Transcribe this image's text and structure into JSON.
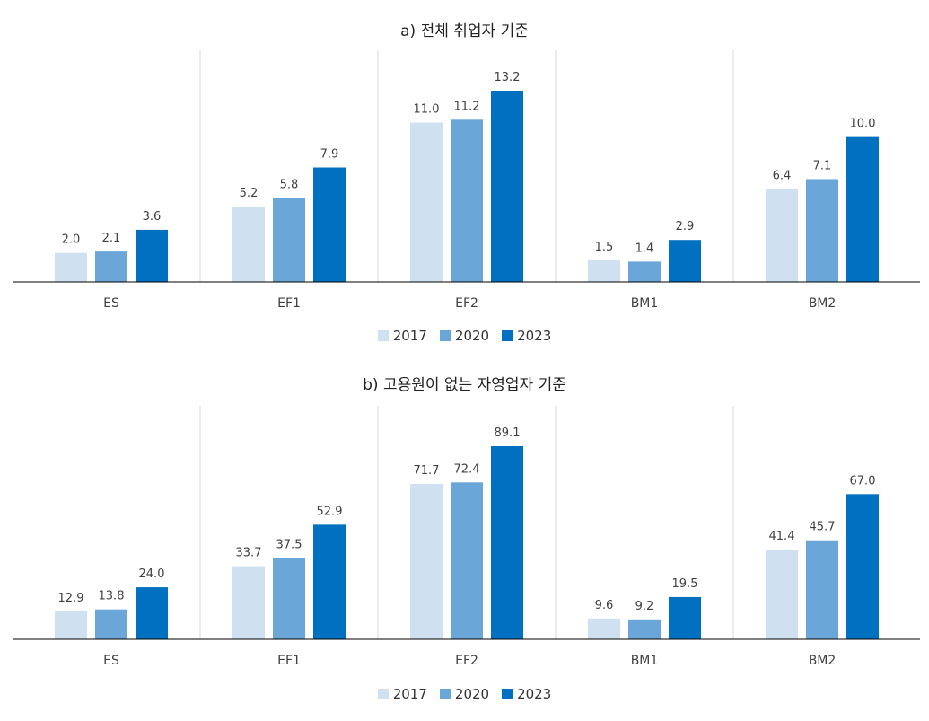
{
  "chart_data": [
    {
      "type": "bar",
      "title": "a) 전체 취업자 기준",
      "categories": [
        "ES",
        "EF1",
        "EF2",
        "BM1",
        "BM2"
      ],
      "series": [
        {
          "name": "2017",
          "values": [
            2.0,
            5.2,
            11.0,
            1.5,
            6.4
          ]
        },
        {
          "name": "2020",
          "values": [
            2.1,
            5.8,
            11.2,
            1.4,
            7.1
          ]
        },
        {
          "name": "2023",
          "values": [
            3.6,
            7.9,
            13.2,
            2.9,
            10.0
          ]
        }
      ],
      "ylim": [
        0,
        13.2
      ],
      "grid": false,
      "legend_position": "bottom",
      "data_labels": true
    },
    {
      "type": "bar",
      "title": "b) 고용원이 없는 자영업자 기준",
      "categories": [
        "ES",
        "EF1",
        "EF2",
        "BM1",
        "BM2"
      ],
      "series": [
        {
          "name": "2017",
          "values": [
            12.9,
            33.7,
            71.7,
            9.6,
            41.4
          ]
        },
        {
          "name": "2020",
          "values": [
            13.8,
            37.5,
            72.4,
            9.2,
            45.7
          ]
        },
        {
          "name": "2023",
          "values": [
            24.0,
            52.9,
            89.1,
            19.5,
            67.0
          ]
        }
      ],
      "ylim": [
        0,
        89.1
      ],
      "grid": false,
      "legend_position": "bottom",
      "data_labels": true
    }
  ],
  "colors": {
    "2017": "#cfe0f1",
    "2020": "#6aa7d8",
    "2023": "#0070c0"
  }
}
